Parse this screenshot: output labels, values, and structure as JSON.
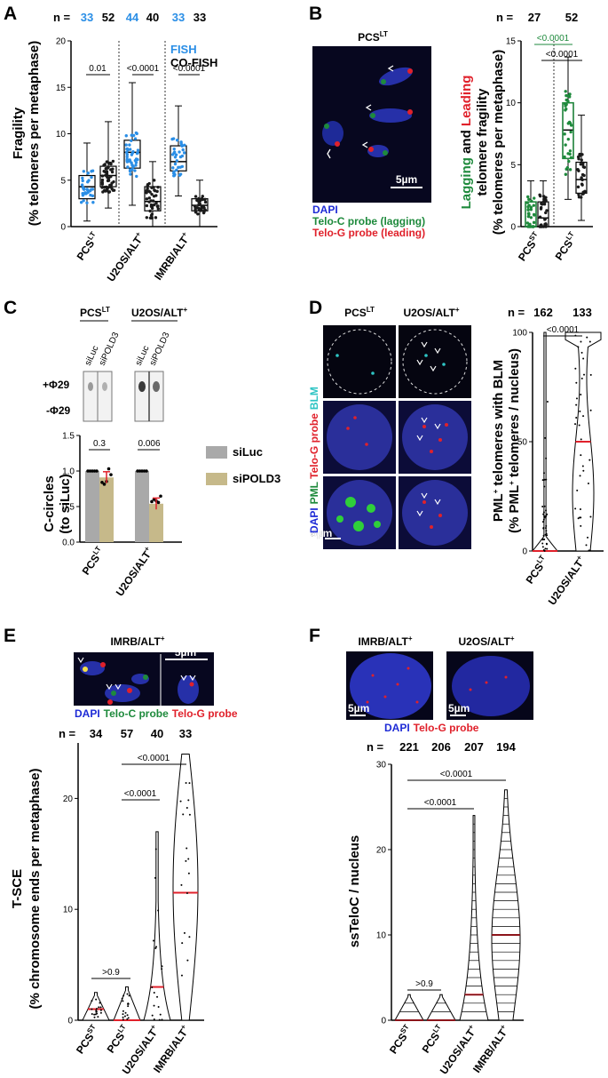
{
  "colors": {
    "fish": "#2a8ee6",
    "black": "#1a1a1a",
    "green": "#1e8a3c",
    "red": "#e0212b",
    "blue": "#1e2bd6",
    "cyan": "#2ec4c4",
    "tan": "#c6b98a",
    "gray": "#a9a9a9"
  },
  "panelA": {
    "letter": "A",
    "n_label": "n =",
    "n_values": [
      "33",
      "52",
      "44",
      "40",
      "33",
      "33"
    ],
    "legend": [
      "FISH",
      "CO-FISH"
    ],
    "ylabel1": "Fragility",
    "ylabel2": "(% telomeres per metaphase)",
    "groups": [
      {
        "name": "PCS",
        "sup": "LT"
      },
      {
        "name": "U2OS/ALT",
        "sup": "+"
      },
      {
        "name": "IMRB/ALT",
        "sup": "+"
      }
    ],
    "pvalues": [
      "0.01",
      "<0.0001",
      "<0.0001"
    ],
    "chart_data": {
      "type": "box",
      "ylim": [
        0,
        20
      ],
      "yticks": [
        0,
        5,
        10,
        15,
        20
      ],
      "boxes": [
        {
          "series": "FISH",
          "q1": 3,
          "median": 4.3,
          "q3": 5.5,
          "min": 0.6,
          "max": 9,
          "n": 33
        },
        {
          "series": "CO-FISH",
          "q1": 4.3,
          "median": 5.5,
          "q3": 6.5,
          "min": 2,
          "max": 11.3,
          "n": 52
        },
        {
          "series": "FISH",
          "q1": 6.3,
          "median": 8,
          "q3": 9.3,
          "min": 2.3,
          "max": 15.5,
          "n": 44
        },
        {
          "series": "CO-FISH",
          "q1": 1.7,
          "median": 2.7,
          "q3": 4.3,
          "min": 0,
          "max": 7,
          "n": 40
        },
        {
          "series": "FISH",
          "q1": 6,
          "median": 7,
          "q3": 8.7,
          "min": 3.3,
          "max": 13,
          "n": 33
        },
        {
          "series": "CO-FISH",
          "q1": 1.7,
          "median": 2.3,
          "q3": 3,
          "min": 0,
          "max": 5,
          "n": 33
        }
      ]
    }
  },
  "panelB": {
    "letter": "B",
    "image_title": "PCS",
    "image_sup": "LT",
    "scale": "5µm",
    "legend": [
      "DAPI",
      "Telo-C probe (lagging)",
      "Telo-G probe (leading)"
    ],
    "n_label": "n =",
    "n_values": [
      "27",
      "52"
    ],
    "ylabel_green": "Lagging",
    "ylabel_mid": " and ",
    "ylabel_red": "Leading",
    "ylabel2": "telomere fragility",
    "ylabel3": "(% telomeres per metaphase)",
    "groups": [
      {
        "name": "PCS",
        "sup": "ST"
      },
      {
        "name": "PCS",
        "sup": "LT"
      }
    ],
    "pvalues": [
      "<0.0001",
      "<0.0001"
    ],
    "chart_data": {
      "type": "box",
      "ylim": [
        0,
        15
      ],
      "yticks": [
        0,
        5,
        10,
        15
      ],
      "boxes": [
        {
          "series": "Lagging",
          "q1": 0,
          "median": 0,
          "q3": 2,
          "min": 0,
          "max": 3.7
        },
        {
          "series": "Leading",
          "q1": 0,
          "median": 0.7,
          "q3": 2,
          "min": 0,
          "max": 3.7
        },
        {
          "series": "Lagging",
          "q1": 5.5,
          "median": 7.8,
          "q3": 10,
          "min": 2.2,
          "max": 13.7
        },
        {
          "series": "Leading",
          "q1": 2.7,
          "median": 3.8,
          "q3": 5.2,
          "min": 0.5,
          "max": 9
        }
      ]
    }
  },
  "panelC": {
    "letter": "C",
    "blot_headers": [
      {
        "name": "PCS",
        "sup": "LT"
      },
      {
        "name": "U2OS/ALT",
        "sup": "+"
      }
    ],
    "lanes": [
      "siLuc",
      "siPOLD3",
      "siLuc",
      "siPOLD3"
    ],
    "rows": [
      "+Φ29",
      "-Φ29"
    ],
    "ylabel1": "C-circles",
    "ylabel2": "(to siLuc)",
    "legend": [
      "siLuc",
      "siPOLD3"
    ],
    "groups": [
      {
        "name": "PCS",
        "sup": "LT"
      },
      {
        "name": "U2OS/ALT",
        "sup": "+"
      }
    ],
    "pvalues": [
      "0.3",
      "0.006"
    ],
    "chart_data": {
      "type": "bar",
      "ylim": [
        0,
        1.5
      ],
      "yticks": [
        "0.0",
        "0.5",
        "1.0",
        "1.5"
      ],
      "categories": [
        "PCS LT",
        "U2OS/ALT+"
      ],
      "series": [
        {
          "name": "siLuc",
          "values": [
            1.0,
            1.0
          ]
        },
        {
          "name": "siPOLD3",
          "values": [
            0.91,
            0.54
          ]
        }
      ]
    }
  },
  "panelD": {
    "letter": "D",
    "col_headers": [
      {
        "name": "PCS",
        "sup": "LT"
      },
      {
        "name": "U2OS/ALT",
        "sup": "+"
      }
    ],
    "side_labels": [
      "DAPI",
      "PML",
      "Telo-G probe",
      "BLM"
    ],
    "scale": "5µm",
    "n_label": "n =",
    "n_values": [
      "162",
      "133"
    ],
    "ylabel1_a": "PML",
    "ylabel1_sup": "+",
    "ylabel1_b": " telomeres with BLM",
    "ylabel2_a": "(% PML",
    "ylabel2_sup": "+",
    "ylabel2_b": " telomeres / nucleus)",
    "groups": [
      {
        "name": "PCS",
        "sup": "LT"
      },
      {
        "name": "U2OS/ALT",
        "sup": "+"
      }
    ],
    "pvalues": [
      "<0.0001"
    ],
    "chart_data": {
      "type": "violin",
      "ylim": [
        0,
        100
      ],
      "yticks": [
        0,
        50,
        100
      ],
      "medians": [
        0,
        50
      ]
    }
  },
  "panelE": {
    "letter": "E",
    "image_title": "IMRB/ALT",
    "image_sup": "+",
    "scale": "5µm",
    "legend": [
      "DAPI",
      "Telo-C probe",
      "Telo-G probe"
    ],
    "n_label": "n =",
    "n_values": [
      "34",
      "57",
      "40",
      "33"
    ],
    "ylabel1": "T-SCE",
    "ylabel2": "(% chromosome ends per metaphase)",
    "groups": [
      {
        "name": "PCS",
        "sup": "ST"
      },
      {
        "name": "PCS",
        "sup": "LT"
      },
      {
        "name": "U2OS/ALT",
        "sup": "+"
      },
      {
        "name": "IMRB/ALT",
        "sup": "+"
      }
    ],
    "pvalues": [
      ">0.9",
      "<0.0001",
      "<0.0001"
    ],
    "chart_data": {
      "type": "violin",
      "ylim": [
        0,
        25
      ],
      "yticks": [
        0,
        10,
        20
      ],
      "medians": [
        1,
        0,
        3,
        11.5
      ],
      "maxima": [
        2.5,
        3,
        17,
        24
      ]
    }
  },
  "panelF": {
    "letter": "F",
    "image_titles": [
      {
        "name": "IMRB/ALT",
        "sup": "+"
      },
      {
        "name": "U2OS/ALT",
        "sup": "+"
      }
    ],
    "scale": "5µm",
    "legend": [
      "DAPI",
      "Telo-G probe"
    ],
    "n_label": "n =",
    "n_values": [
      "221",
      "206",
      "207",
      "194"
    ],
    "ylabel1": "ssTeloC / nucleus",
    "groups": [
      {
        "name": "PCS",
        "sup": "ST"
      },
      {
        "name": "PCS",
        "sup": "LT"
      },
      {
        "name": "U2OS/ALT",
        "sup": "+"
      },
      {
        "name": "IMRB/ALT",
        "sup": "+"
      }
    ],
    "pvalues": [
      ">0.9",
      "<0.0001",
      "<0.0001"
    ],
    "chart_data": {
      "type": "violin",
      "ylim": [
        0,
        30
      ],
      "yticks": [
        0,
        10,
        20,
        30
      ],
      "medians": [
        0,
        0,
        3,
        10
      ],
      "maxima": [
        3,
        3,
        24,
        27
      ]
    }
  }
}
